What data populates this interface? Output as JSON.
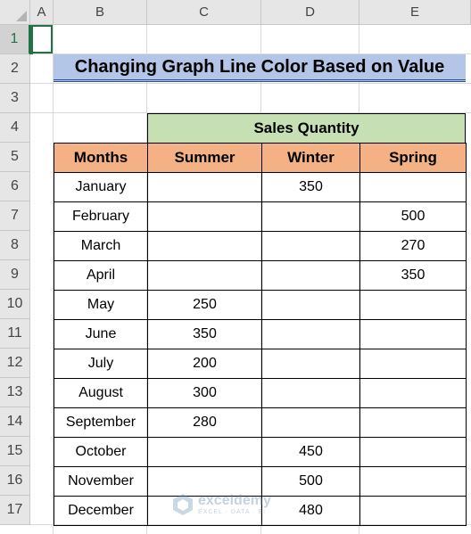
{
  "columns": [
    "A",
    "B",
    "C",
    "D",
    "E"
  ],
  "rows": [
    "1",
    "2",
    "3",
    "4",
    "5",
    "6",
    "7",
    "8",
    "9",
    "10",
    "11",
    "12",
    "13",
    "14",
    "15",
    "16",
    "17"
  ],
  "title": "Changing Graph Line Color Based on Value",
  "table": {
    "group_header": "Sales Quantity",
    "headers": [
      "Months",
      "Summer",
      "Winter",
      "Spring"
    ],
    "rows": [
      {
        "month": "January",
        "summer": "",
        "winter": "350",
        "spring": ""
      },
      {
        "month": "February",
        "summer": "",
        "winter": "",
        "spring": "500"
      },
      {
        "month": "March",
        "summer": "",
        "winter": "",
        "spring": "270"
      },
      {
        "month": "April",
        "summer": "",
        "winter": "",
        "spring": "350"
      },
      {
        "month": "May",
        "summer": "250",
        "winter": "",
        "spring": ""
      },
      {
        "month": "June",
        "summer": "350",
        "winter": "",
        "spring": ""
      },
      {
        "month": "July",
        "summer": "200",
        "winter": "",
        "spring": ""
      },
      {
        "month": "August",
        "summer": "300",
        "winter": "",
        "spring": ""
      },
      {
        "month": "September",
        "summer": "280",
        "winter": "",
        "spring": ""
      },
      {
        "month": "October",
        "summer": "",
        "winter": "450",
        "spring": ""
      },
      {
        "month": "November",
        "summer": "",
        "winter": "500",
        "spring": ""
      },
      {
        "month": "December",
        "summer": "",
        "winter": "480",
        "spring": ""
      }
    ]
  },
  "watermark": {
    "name": "exceldemy",
    "tagline": "EXCEL · DATA · BI"
  },
  "colors": {
    "title_fill": "#b4c6e7",
    "group_fill": "#c6e0b4",
    "header_fill": "#f4b183",
    "selection": "#217346"
  }
}
